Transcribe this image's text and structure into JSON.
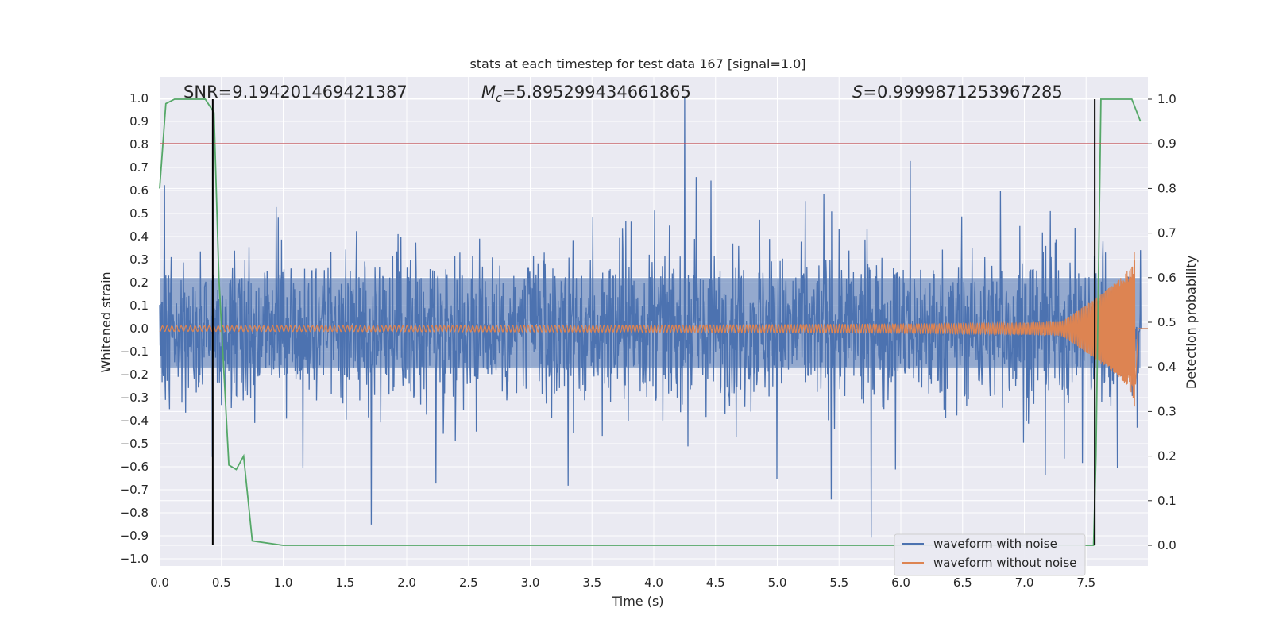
{
  "chart_data": {
    "type": "line",
    "title": "stats at each timestep for test data 167 [signal=1.0]",
    "xlabel": "Time (s)",
    "ylabel_left": "Whitened strain",
    "ylabel_right": "Detection probability",
    "xlim": [
      0.0,
      8.0
    ],
    "ylim_left": [
      -1.04,
      1.1
    ],
    "ylim_right": [
      0.0,
      1.0
    ],
    "grid": true,
    "x_ticks": [
      "0.0",
      "0.5",
      "1.0",
      "1.5",
      "2.0",
      "2.5",
      "3.0",
      "3.5",
      "4.0",
      "4.5",
      "5.0",
      "5.5",
      "6.0",
      "6.5",
      "7.0",
      "7.5"
    ],
    "y_left_ticks": [
      "1.0",
      "0.9",
      "0.8",
      "0.7",
      "0.6",
      "0.5",
      "0.4",
      "0.3",
      "0.2",
      "0.1",
      "0.0",
      "−0.1",
      "−0.2",
      "−0.3",
      "−0.4",
      "−0.5",
      "−0.6",
      "−0.7",
      "−0.8",
      "−0.9",
      "−1.0"
    ],
    "y_right_ticks": [
      "1.0",
      "0.9",
      "0.8",
      "0.7",
      "0.6",
      "0.5",
      "0.4",
      "0.3",
      "0.2",
      "0.1",
      "0.0"
    ],
    "annotations": {
      "snr": "SNR=9.194201469421387",
      "mc_symbol": "M",
      "mc_subscript": "c",
      "mc_value": "=5.895299434661865",
      "s_symbol": "S",
      "s_value": "=0.9999871253967285"
    },
    "threshold_line": {
      "value": 0.9,
      "axis": "right",
      "color": "#c44e52"
    },
    "vertical_markers": [
      0.43,
      7.57
    ],
    "series": [
      {
        "name": "waveform with noise",
        "color": "#4c72b0",
        "axis": "left",
        "description_range": [
          -0.95,
          1.0
        ]
      },
      {
        "name": "waveform without noise",
        "color": "#dd8452",
        "axis": "left",
        "chirp_end": 7.9
      },
      {
        "name": "detection probability",
        "color": "#55a868",
        "axis": "right",
        "x": [
          0.0,
          0.05,
          0.12,
          0.2,
          0.3,
          0.37,
          0.44,
          0.48,
          0.56,
          0.62,
          0.68,
          0.75,
          1.0,
          2.0,
          3.0,
          4.0,
          5.0,
          6.0,
          7.0,
          7.5,
          7.56,
          7.58,
          7.62,
          7.7,
          7.8,
          7.87,
          7.94
        ],
        "y": [
          0.8,
          0.99,
          1.0,
          1.0,
          1.0,
          1.0,
          0.97,
          0.6,
          0.18,
          0.17,
          0.2,
          0.01,
          0.0,
          0.0,
          0.0,
          0.0,
          0.0,
          0.0,
          0.0,
          0.0,
          0.0,
          0.2,
          1.0,
          1.0,
          1.0,
          1.0,
          0.95
        ]
      }
    ],
    "legend": {
      "placement": "lower-right",
      "entries": [
        "waveform with noise",
        "waveform without noise"
      ]
    }
  }
}
